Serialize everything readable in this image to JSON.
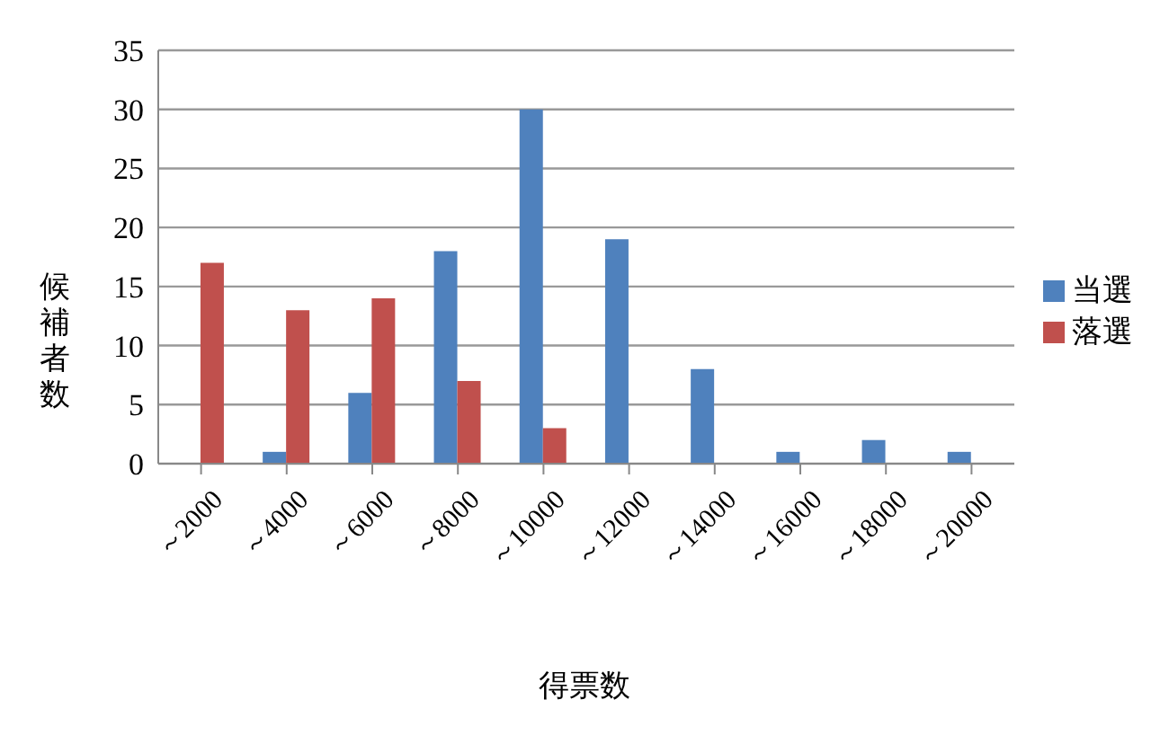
{
  "chart_data": {
    "type": "bar",
    "xlabel": "得票数",
    "ylabel": "候補者数",
    "categories": [
      "～2000",
      "～4000",
      "～6000",
      "～8000",
      "～10000",
      "～12000",
      "～14000",
      "～16000",
      "～18000",
      "～20000"
    ],
    "series": [
      {
        "name": "当選",
        "color": "#4f81bd",
        "values": [
          0,
          1,
          6,
          18,
          30,
          19,
          8,
          1,
          2,
          1
        ]
      },
      {
        "name": "落選",
        "color": "#c0504d",
        "values": [
          17,
          13,
          14,
          7,
          3,
          0,
          0,
          0,
          0,
          0
        ]
      }
    ],
    "ylim": [
      0,
      35
    ],
    "yticks": [
      0,
      5,
      10,
      15,
      20,
      25,
      30,
      35
    ],
    "grid": "y",
    "legend": "right"
  }
}
